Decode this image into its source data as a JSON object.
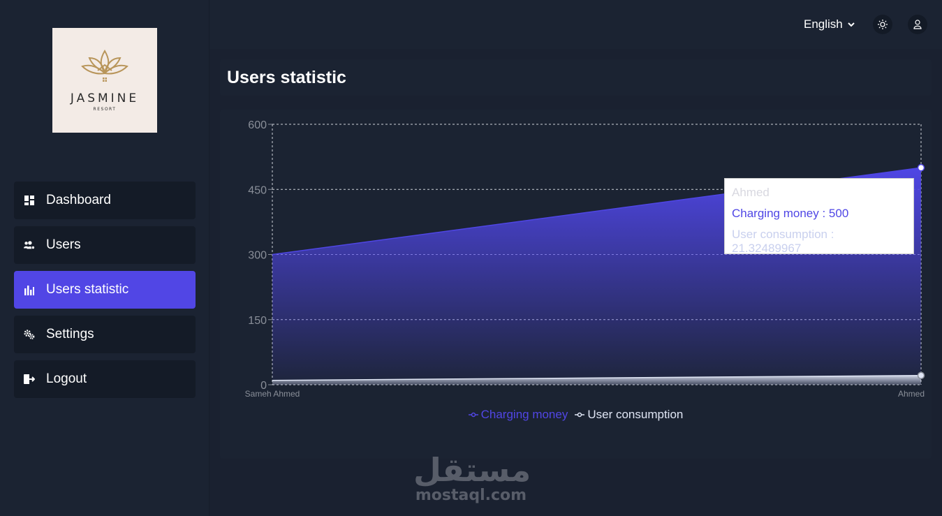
{
  "logo": {
    "word": "JASMINE",
    "sub": "RESORT"
  },
  "sidebar": {
    "items": [
      {
        "label": "Dashboard",
        "icon": "dashboard-icon",
        "active": false
      },
      {
        "label": "Users",
        "icon": "users-icon",
        "active": false
      },
      {
        "label": "Users statistic",
        "icon": "bar-chart-icon",
        "active": true
      },
      {
        "label": "Settings",
        "icon": "gears-icon",
        "active": false
      },
      {
        "label": "Logout",
        "icon": "logout-icon",
        "active": false
      }
    ]
  },
  "header": {
    "language": "English",
    "theme_icon": "sun-icon",
    "profile_icon": "user-icon"
  },
  "page": {
    "title": "Users statistic"
  },
  "colors": {
    "accent": "#5146e5",
    "charging": "#4f46e5",
    "consumption": "#e0e6f5",
    "background": "#1a2130"
  },
  "chart_data": {
    "type": "area",
    "categories": [
      "Sameh Ahmed",
      "Ahmed"
    ],
    "series": [
      {
        "name": "Charging money",
        "values": [
          300,
          500
        ]
      },
      {
        "name": "User consumption",
        "values": [
          10,
          21.32489967
        ]
      }
    ],
    "ylim": [
      0,
      600
    ],
    "yticks": [
      0,
      150,
      300,
      450,
      600
    ],
    "grid": true,
    "legend_position": "bottom-center",
    "tooltip": {
      "label": "Ahmed",
      "rows": [
        "Charging money : 500",
        "User consumption : 21.32489967"
      ]
    }
  },
  "watermark": {
    "arabic": "مستقل",
    "latin": "mostaql.com"
  }
}
